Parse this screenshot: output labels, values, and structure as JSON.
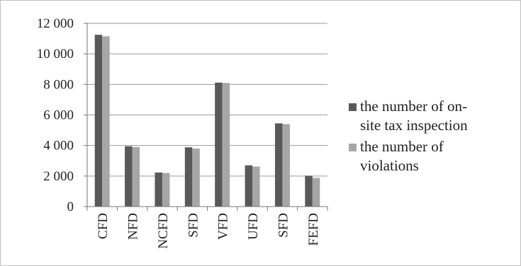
{
  "chart_data": {
    "type": "bar",
    "categories": [
      "CFD",
      "NFD",
      "NCFD",
      "SFD",
      "VFD",
      "UFD",
      "SFD",
      "FEFD"
    ],
    "series": [
      {
        "name": "the number of on-site tax inspection",
        "values": [
          11250,
          3950,
          2230,
          3880,
          8120,
          2700,
          5450,
          2020
        ],
        "color": "#595959"
      },
      {
        "name": "the number of violations",
        "values": [
          11150,
          3900,
          2200,
          3800,
          8100,
          2620,
          5400,
          1880
        ],
        "color": "#a6a6a6"
      }
    ],
    "title": "",
    "xlabel": "",
    "ylabel": "",
    "ylim": [
      0,
      12000
    ],
    "yticks": [
      0,
      2000,
      4000,
      6000,
      8000,
      10000,
      12000
    ],
    "ytick_labels": [
      "0",
      "2 000",
      "4 000",
      "6 000",
      "8 000",
      "10 000",
      "12 000"
    ],
    "grid": true,
    "legend_position": "right"
  },
  "legend": {
    "entries": [
      {
        "lines": [
          "the number of on-",
          "site tax inspection"
        ],
        "color": "#595959"
      },
      {
        "lines": [
          "the number of",
          "violations"
        ],
        "color": "#a6a6a6"
      }
    ]
  }
}
